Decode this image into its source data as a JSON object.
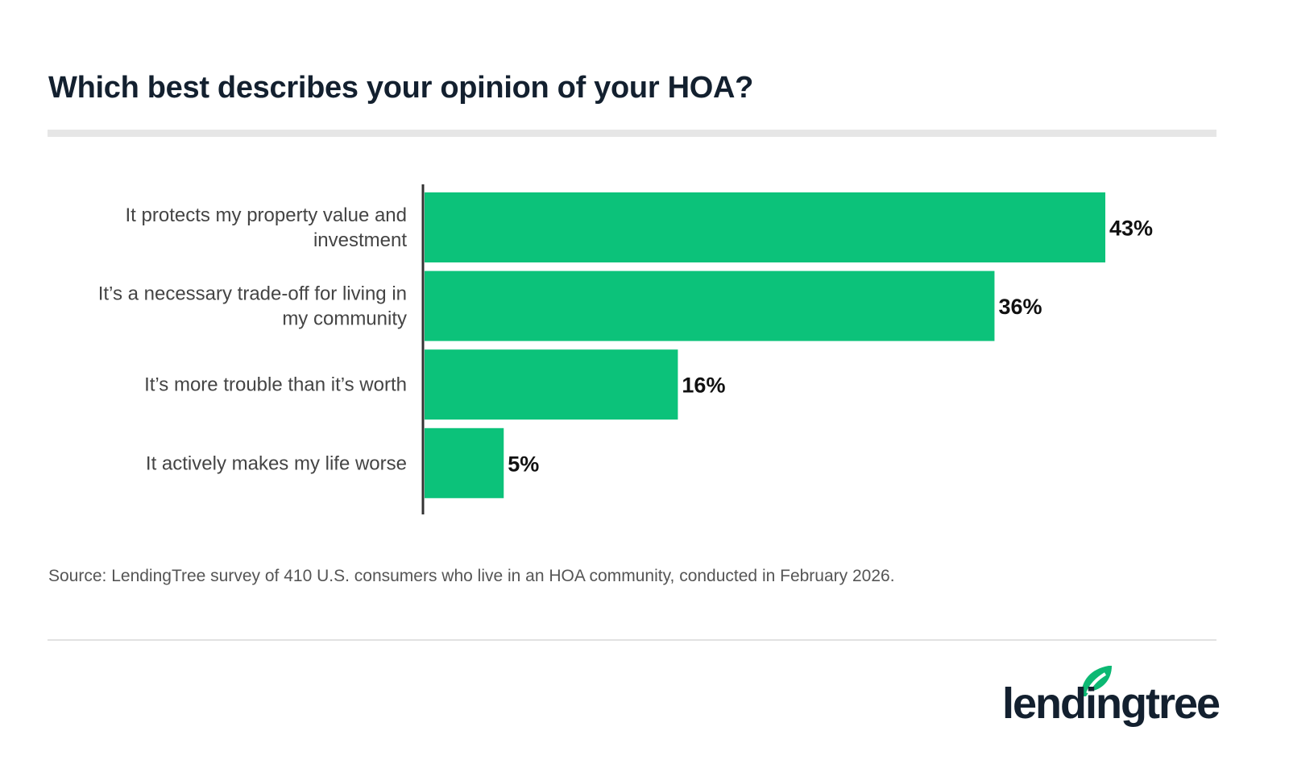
{
  "chart_data": {
    "type": "bar",
    "orientation": "horizontal",
    "title": "Which best describes your opinion of your HOA?",
    "categories": [
      [
        "It protects my property value and",
        "investment"
      ],
      [
        "It’s a necessary trade-off for living in",
        "my community"
      ],
      [
        "It’s more trouble than it’s worth"
      ],
      [
        "It actively makes my life worse"
      ]
    ],
    "values": [
      43,
      36,
      16,
      5
    ],
    "value_labels": [
      "43%",
      "36%",
      "16%",
      "5%"
    ],
    "unit": "%",
    "xlim": [
      0,
      43
    ],
    "grid": false,
    "bar_color": "#0cc27a"
  },
  "source": "Source: LendingTree survey of 410 U.S. consumers who live in an HOA community, conducted in February 2026.",
  "logo": {
    "text": "lendingtree",
    "leaf_color": "#0cb873",
    "text_color": "#13202f"
  }
}
